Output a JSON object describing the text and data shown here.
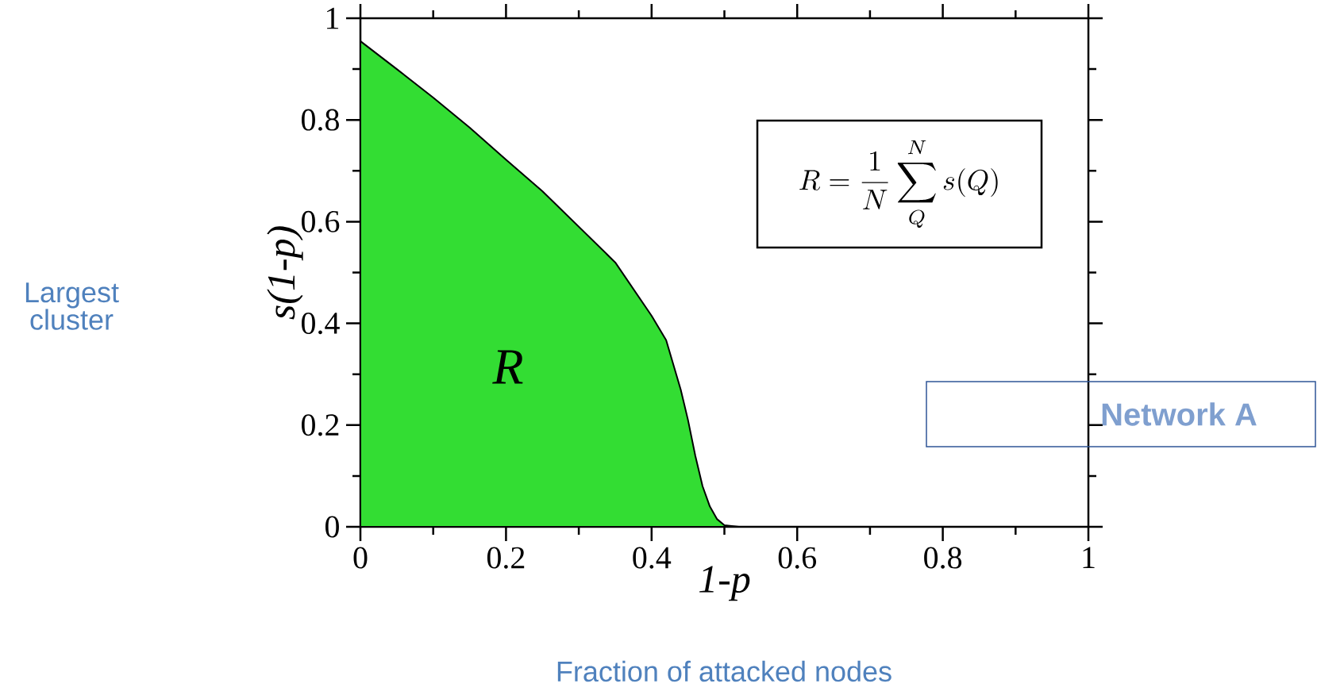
{
  "chart_data": {
    "type": "area",
    "xlabel": "1-p",
    "ylabel": "s(1-p)",
    "x": [
      0,
      0.05,
      0.1,
      0.15,
      0.2,
      0.25,
      0.3,
      0.35,
      0.4,
      0.42,
      0.44,
      0.45,
      0.46,
      0.47,
      0.48,
      0.49,
      0.5,
      0.52,
      0.6,
      0.8,
      1.0
    ],
    "series": [
      {
        "color": "#33dd33",
        "values": [
          0.955,
          0.9,
          0.844,
          0.785,
          0.722,
          0.66,
          0.59,
          0.52,
          0.415,
          0.367,
          0.27,
          0.21,
          0.14,
          0.08,
          0.04,
          0.015,
          0.003,
          0,
          0,
          0,
          0
        ]
      }
    ],
    "xlim": [
      0,
      1
    ],
    "ylim": [
      0,
      1
    ],
    "xticks": [
      0,
      0.2,
      0.4,
      0.6,
      0.8,
      1
    ],
    "yticks": [
      0,
      0.2,
      0.4,
      0.6,
      0.8,
      1
    ],
    "annotations": [
      "R",
      "R=\\frac{1}{N}\\sum_{Q}^{N}s(Q)",
      "Network A",
      "Largest cluster",
      "Fraction of attacked nodes"
    ]
  }
}
